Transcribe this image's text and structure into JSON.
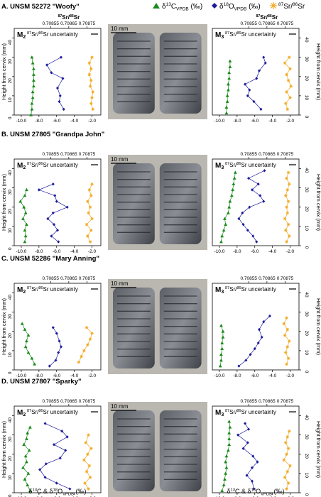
{
  "legend": {
    "c13_label": "δ13CVPDB (‰)",
    "o18_label": "δ18OVPDB (‰)",
    "sr_label": "87Sr/86Sr",
    "c13_color": "#1a8a1a",
    "o18_color": "#1c1c9c",
    "sr_color": "#f2a81d"
  },
  "axes": {
    "x_ticks": [
      "-10.0",
      "-8.0",
      "-6.0",
      "-4.0",
      "-2.0"
    ],
    "y_ticks": [
      "0",
      "10",
      "20",
      "30",
      "40"
    ],
    "sr_ticks": [
      "0.70855",
      "0.70865",
      "0.70875"
    ],
    "sr_title": "87Sr/86Sr",
    "y_label": "Height from cervix (mm)",
    "x_label": "δ13C & δ18OVPDB (‰)",
    "uncertainty_label": "87Sr/86Sr uncertainty",
    "scale_bar": "10 mm",
    "ylim": [
      0,
      45
    ],
    "xlim": [
      -10.8,
      -1
    ]
  },
  "chart_data": [
    {
      "type": "line",
      "panel": "A. UNSM 52272 \"Woofy\"",
      "left_tooth": "M2",
      "right_tooth": "M3",
      "left": {
        "c13": [
          [
            -8.9,
            0
          ],
          [
            -8.8,
            3
          ],
          [
            -8.8,
            6
          ],
          [
            -8.7,
            9
          ],
          [
            -8.7,
            12
          ],
          [
            -8.6,
            15
          ],
          [
            -8.6,
            18
          ],
          [
            -8.6,
            21
          ],
          [
            -8.6,
            24
          ],
          [
            -8.7,
            27
          ],
          [
            -8.8,
            30
          ]
        ],
        "o18": [
          [
            -5.2,
            3
          ],
          [
            -5.7,
            7
          ],
          [
            -5.6,
            10
          ],
          [
            -5.9,
            14
          ],
          [
            -5.3,
            19
          ],
          [
            -6.6,
            22
          ],
          [
            -7.1,
            26
          ],
          [
            -5.5,
            30
          ]
        ],
        "sr": [
          [
            -1.9,
            3
          ],
          [
            -2.1,
            6
          ],
          [
            -2.0,
            9
          ],
          [
            -1.9,
            12
          ],
          [
            -2.2,
            15
          ],
          [
            -2.1,
            18
          ],
          [
            -2.3,
            21
          ],
          [
            -2.1,
            24
          ],
          [
            -2.3,
            27
          ],
          [
            -2.0,
            30
          ]
        ]
      },
      "right": {
        "c13": [
          [
            -9.2,
            1
          ],
          [
            -9.2,
            4
          ],
          [
            -9.1,
            7
          ],
          [
            -9.1,
            10
          ],
          [
            -9.0,
            13
          ],
          [
            -9.0,
            16
          ],
          [
            -8.9,
            19
          ],
          [
            -8.9,
            22
          ],
          [
            -8.8,
            25
          ],
          [
            -8.8,
            28
          ]
        ],
        "o18": [
          [
            -5.3,
            3
          ],
          [
            -6.1,
            7
          ],
          [
            -6.8,
            10
          ],
          [
            -6.6,
            13
          ],
          [
            -7.1,
            16
          ],
          [
            -5.8,
            19
          ],
          [
            -5.5,
            23
          ],
          [
            -4.8,
            27
          ],
          [
            -5.0,
            30
          ]
        ],
        "sr": [
          [
            -2.3,
            3
          ],
          [
            -2.5,
            6
          ],
          [
            -2.0,
            9
          ],
          [
            -2.4,
            12
          ],
          [
            -1.9,
            15
          ],
          [
            -2.2,
            18
          ],
          [
            -2.4,
            21
          ],
          [
            -2.0,
            24
          ],
          [
            -2.6,
            27
          ],
          [
            -2.1,
            30
          ]
        ]
      }
    },
    {
      "type": "line",
      "panel": "B. UNSM 27805 \"Grandpa John\"",
      "left_tooth": "M2",
      "right_tooth": "M3",
      "left": {
        "c13": [
          [
            -9.6,
            2
          ],
          [
            -9.5,
            5
          ],
          [
            -9.6,
            8
          ],
          [
            -9.4,
            11
          ],
          [
            -9.8,
            14
          ],
          [
            -9.5,
            17
          ],
          [
            -9.7,
            20
          ],
          [
            -10.1,
            23
          ],
          [
            -9.6,
            26
          ],
          [
            -9.4,
            29
          ]
        ],
        "o18": [
          [
            -5.8,
            2
          ],
          [
            -6.6,
            5
          ],
          [
            -5.9,
            8
          ],
          [
            -6.3,
            11
          ],
          [
            -7.0,
            14
          ],
          [
            -6.4,
            17
          ],
          [
            -4.8,
            20
          ],
          [
            -6.0,
            23
          ],
          [
            -6.2,
            26
          ],
          [
            -8.0,
            29
          ],
          [
            -6.4,
            32
          ]
        ],
        "sr": [
          [
            -2.2,
            2
          ],
          [
            -2.5,
            5
          ],
          [
            -2.1,
            8
          ],
          [
            -2.6,
            11
          ],
          [
            -2.0,
            14
          ],
          [
            -2.4,
            17
          ],
          [
            -2.2,
            20
          ],
          [
            -2.5,
            23
          ],
          [
            -2.1,
            26
          ],
          [
            -2.3,
            29
          ],
          [
            -2.0,
            32
          ]
        ]
      },
      "right": {
        "c13": [
          [
            -9.8,
            2
          ],
          [
            -9.7,
            5
          ],
          [
            -9.5,
            8
          ],
          [
            -9.3,
            11
          ],
          [
            -9.4,
            14
          ],
          [
            -9.0,
            17
          ],
          [
            -8.9,
            20
          ],
          [
            -8.8,
            23
          ],
          [
            -8.6,
            26
          ],
          [
            -8.5,
            29
          ],
          [
            -8.4,
            32
          ],
          [
            -8.3,
            35
          ],
          [
            -8.2,
            38
          ]
        ],
        "o18": [
          [
            -5.8,
            2
          ],
          [
            -6.2,
            5
          ],
          [
            -6.8,
            8
          ],
          [
            -7.3,
            11
          ],
          [
            -7.8,
            14
          ],
          [
            -7.4,
            17
          ],
          [
            -6.6,
            20
          ],
          [
            -5.0,
            23
          ],
          [
            -5.4,
            26
          ],
          [
            -6.3,
            29
          ],
          [
            -5.6,
            32
          ],
          [
            -6.7,
            35
          ],
          [
            -4.9,
            39
          ]
        ],
        "sr": [
          [
            -2.4,
            2
          ],
          [
            -2.1,
            5
          ],
          [
            -2.5,
            8
          ],
          [
            -2.2,
            11
          ],
          [
            -2.6,
            14
          ],
          [
            -2.3,
            17
          ],
          [
            -2.4,
            20
          ],
          [
            -2.2,
            23
          ],
          [
            -2.5,
            26
          ],
          [
            -2.3,
            29
          ],
          [
            -2.1,
            32
          ],
          [
            -2.4,
            35
          ],
          [
            -2.2,
            38
          ]
        ]
      }
    },
    {
      "type": "line",
      "panel": "C. UNSM 52286 \"Mary Anning\"",
      "left_tooth": "M2",
      "right_tooth": "M3",
      "left": {
        "c13": [
          [
            -8.5,
            3
          ],
          [
            -8.8,
            6
          ],
          [
            -9.2,
            9
          ],
          [
            -9.5,
            12
          ],
          [
            -9.4,
            15
          ],
          [
            -9.2,
            18
          ],
          [
            -9.6,
            21
          ],
          [
            -9.9,
            24
          ]
        ],
        "o18": [
          [
            -6.8,
            2
          ],
          [
            -6.1,
            5
          ],
          [
            -5.8,
            9
          ],
          [
            -5.5,
            12
          ],
          [
            -5.7,
            15
          ],
          [
            -6.0,
            19
          ],
          [
            -6.4,
            22
          ]
        ],
        "sr": [
          [
            -3.5,
            4
          ],
          [
            -3.2,
            7
          ],
          [
            -2.9,
            10
          ],
          [
            -2.5,
            13
          ],
          [
            -2.2,
            16
          ],
          [
            -2.0,
            19
          ],
          [
            -2.6,
            22
          ]
        ]
      },
      "right": {
        "c13": [
          [
            -9.9,
            2
          ],
          [
            -9.8,
            5
          ],
          [
            -9.8,
            8
          ],
          [
            -9.7,
            11
          ],
          [
            -9.7,
            14
          ],
          [
            -9.6,
            17
          ],
          [
            -9.6,
            20
          ],
          [
            -9.8,
            23
          ]
        ],
        "o18": [
          [
            -7.8,
            2
          ],
          [
            -7.0,
            5
          ],
          [
            -6.5,
            8
          ],
          [
            -6.0,
            11
          ],
          [
            -5.6,
            14
          ],
          [
            -5.2,
            17
          ],
          [
            -5.5,
            21
          ],
          [
            -5.0,
            25
          ],
          [
            -4.3,
            28
          ]
        ],
        "sr": [
          [
            -2.4,
            3
          ],
          [
            -2.2,
            6
          ],
          [
            -2.5,
            9
          ],
          [
            -2.3,
            12
          ],
          [
            -2.1,
            15
          ],
          [
            -2.6,
            18
          ],
          [
            -2.3,
            21
          ],
          [
            -2.7,
            24
          ],
          [
            -2.4,
            27
          ]
        ]
      }
    },
    {
      "type": "line",
      "panel": "D. UNSM 27807 \"Sparky\"",
      "left_tooth": "M2",
      "right_tooth": "M3",
      "left": {
        "c13": [
          [
            -9.0,
            1
          ],
          [
            -9.3,
            4
          ],
          [
            -9.6,
            7
          ],
          [
            -9.2,
            10
          ],
          [
            -9.8,
            13
          ],
          [
            -9.4,
            16
          ],
          [
            -9.5,
            19
          ],
          [
            -9.1,
            22
          ],
          [
            -9.7,
            25
          ],
          [
            -9.4,
            28
          ],
          [
            -9.3,
            31
          ],
          [
            -9.0,
            34
          ]
        ],
        "o18": [
          [
            -4.5,
            2
          ],
          [
            -6.0,
            5
          ],
          [
            -7.3,
            8
          ],
          [
            -7.9,
            12
          ],
          [
            -7.2,
            15
          ],
          [
            -5.6,
            18
          ],
          [
            -5.0,
            22
          ],
          [
            -6.3,
            25
          ],
          [
            -4.8,
            29
          ],
          [
            -5.4,
            32
          ],
          [
            -7.3,
            36
          ]
        ],
        "sr": [
          [
            -2.4,
            2
          ],
          [
            -2.8,
            5
          ],
          [
            -2.2,
            8
          ],
          [
            -2.6,
            11
          ],
          [
            -2.3,
            14
          ],
          [
            -2.9,
            17
          ],
          [
            -2.5,
            20
          ],
          [
            -2.1,
            23
          ],
          [
            -2.7,
            26
          ],
          [
            -2.4,
            30
          ]
        ]
      },
      "right": {
        "c13": [
          [
            -9.7,
            1
          ],
          [
            -9.5,
            4
          ],
          [
            -9.4,
            7
          ],
          [
            -9.3,
            10
          ],
          [
            -9.2,
            13
          ],
          [
            -9.3,
            16
          ],
          [
            -9.2,
            19
          ],
          [
            -9.0,
            22
          ],
          [
            -8.9,
            25
          ],
          [
            -8.9,
            28
          ],
          [
            -8.9,
            31
          ],
          [
            -8.8,
            34
          ],
          [
            -8.9,
            37
          ]
        ],
        "o18": [
          [
            -6.1,
            2
          ],
          [
            -6.3,
            6
          ],
          [
            -6.9,
            9
          ],
          [
            -6.3,
            13
          ],
          [
            -5.7,
            16
          ],
          [
            -6.2,
            19
          ],
          [
            -7.3,
            23
          ],
          [
            -6.8,
            26
          ],
          [
            -7.9,
            30
          ],
          [
            -6.7,
            33
          ],
          [
            -7.1,
            36
          ]
        ],
        "sr": [
          [
            -2.4,
            2
          ],
          [
            -2.2,
            5
          ],
          [
            -2.6,
            8
          ],
          [
            -2.3,
            11
          ],
          [
            -2.0,
            14
          ],
          [
            -2.7,
            17
          ],
          [
            -2.4,
            20
          ],
          [
            -2.2,
            23
          ],
          [
            -2.5,
            26
          ],
          [
            -2.3,
            29
          ],
          [
            -2.1,
            32
          ]
        ]
      }
    }
  ]
}
